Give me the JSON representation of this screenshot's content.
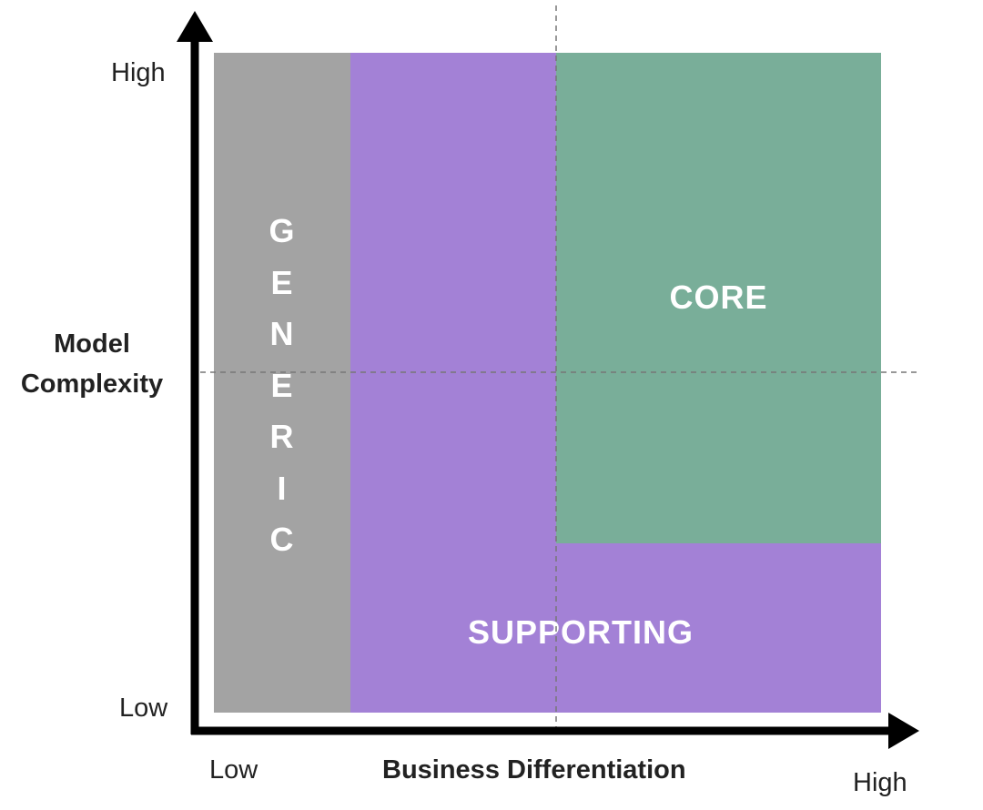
{
  "diagram": {
    "regions": {
      "generic": "GENERIC",
      "core": "CORE",
      "supporting": "SUPPORTING"
    },
    "y_axis": {
      "title_line1": "Model",
      "title_line2": "Complexity",
      "high_label": "High",
      "low_label": "Low"
    },
    "x_axis": {
      "title": "Business Differentiation",
      "low_label": "Low",
      "high_label": "High"
    },
    "colors": {
      "generic": "#a3a3a3",
      "supporting": "#a381d6",
      "core": "#79ae99",
      "axis": "#000000",
      "dashed_line": "#777777"
    }
  }
}
